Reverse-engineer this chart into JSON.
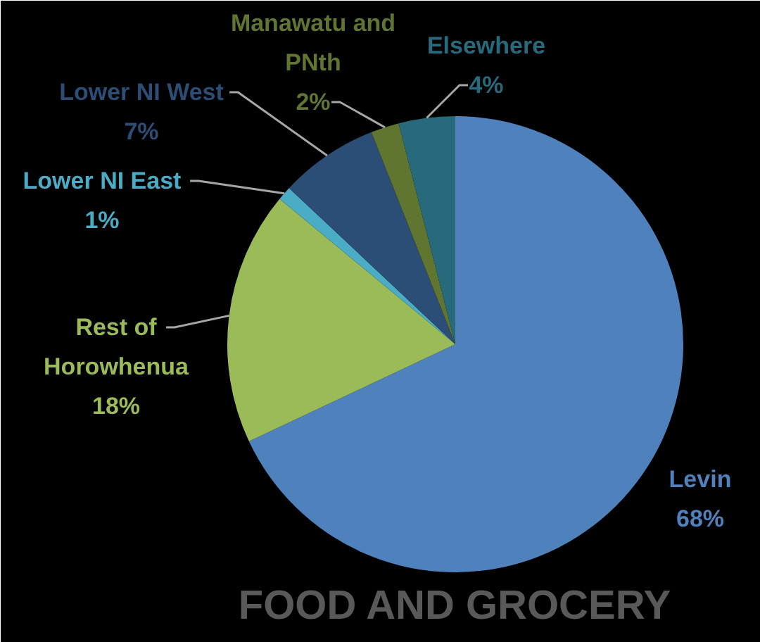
{
  "chart_data": {
    "type": "pie",
    "title": "FOOD AND GROCERY",
    "categories": [
      "Levin",
      "Rest of Horowhenua",
      "Lower NI East",
      "Lower NI West",
      "Manawatu and PNth",
      "Elsewhere"
    ],
    "values": [
      68,
      18,
      1,
      7,
      2,
      4
    ],
    "value_labels": [
      "68%",
      "18%",
      "1%",
      "7%",
      "2%",
      "4%"
    ],
    "colors": [
      "#4f81bd",
      "#9bbb59",
      "#4bacc6",
      "#2c4d75",
      "#5f7530",
      "#276a7c"
    ]
  }
}
